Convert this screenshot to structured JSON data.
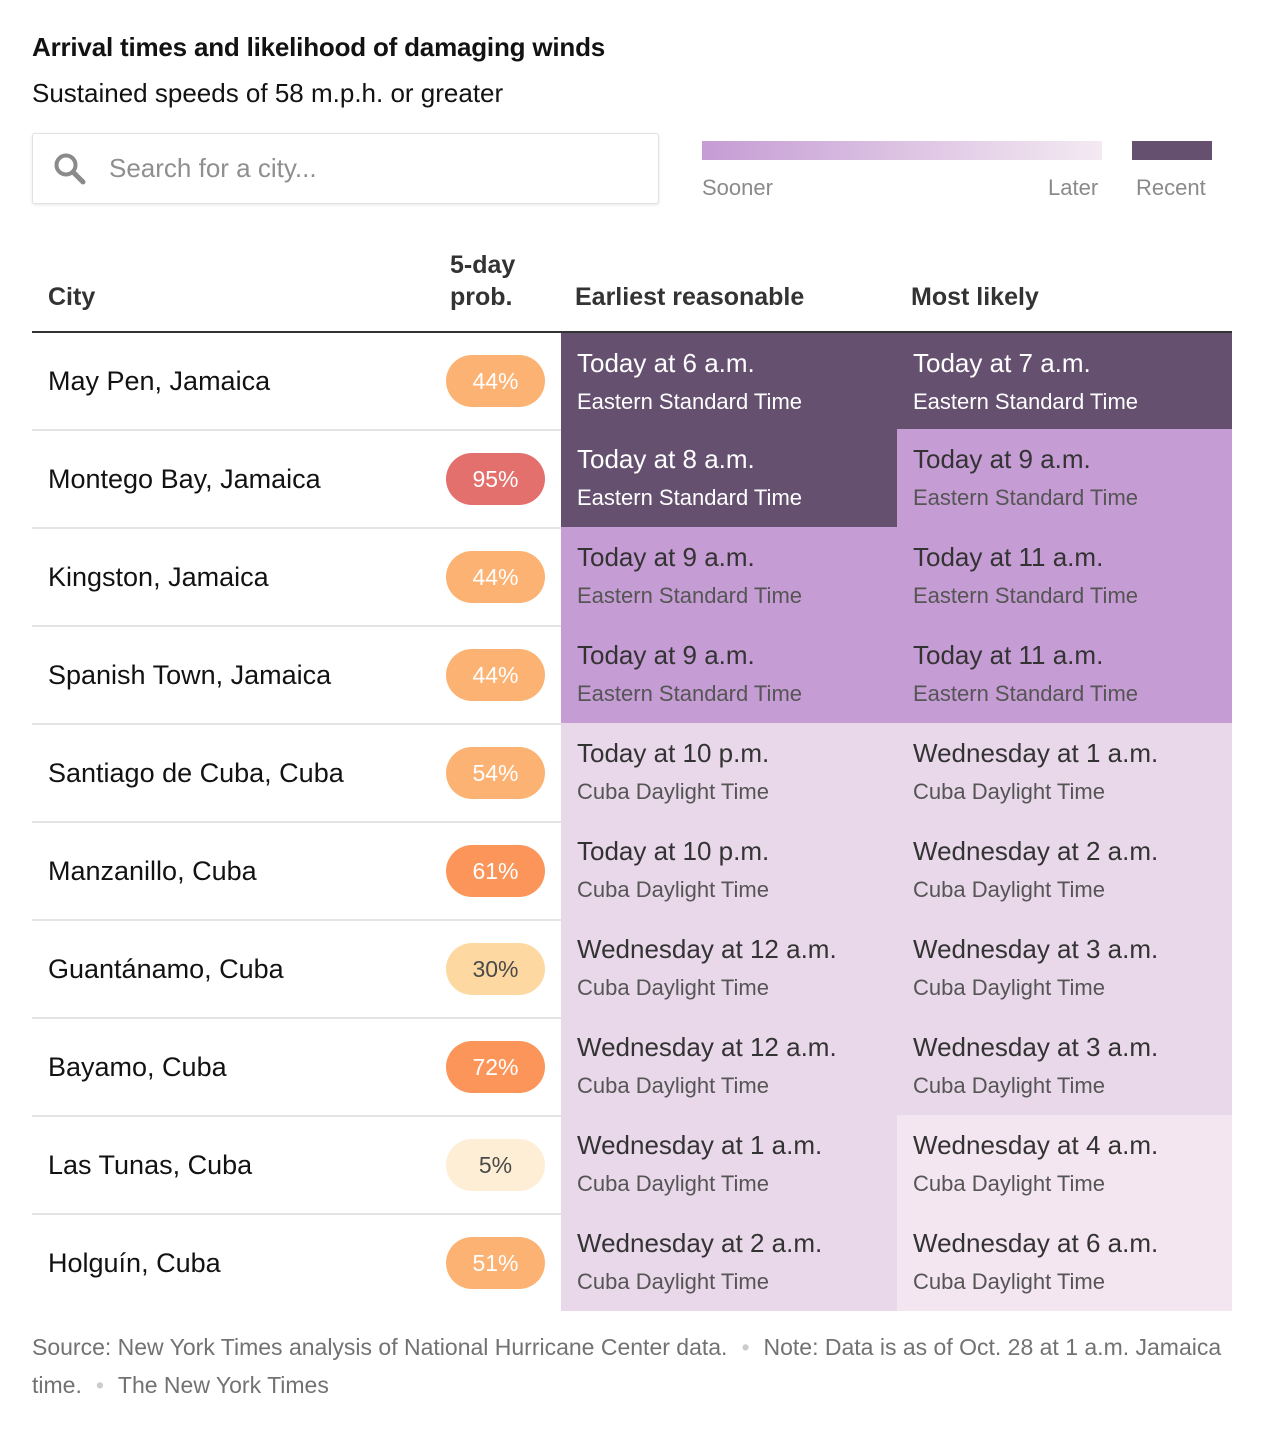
{
  "title": "Arrival times and likelihood of damaging winds",
  "subtitle": "Sustained speeds of 58 m.p.h. or greater",
  "search": {
    "placeholder": "Search for a city..."
  },
  "legend": {
    "sooner": "Sooner",
    "later": "Later",
    "recent": "Recent",
    "colors": {
      "sooner": "#c59cd4",
      "later": "#f4eaf2",
      "recent": "#655070"
    }
  },
  "table": {
    "headers": {
      "city": "City",
      "prob_line1": "5-day",
      "prob_line2": "prob.",
      "earliest": "Earliest reasonable",
      "likely": "Most likely"
    },
    "rows": [
      {
        "city": "May Pen, Jamaica",
        "prob": "44%",
        "prob_color": "#fcb272",
        "early_time": "Today at 6 a.m.",
        "early_zone": "Eastern Standard Time",
        "early_shade": "recent",
        "likely_time": "Today at 7 a.m.",
        "likely_zone": "Eastern Standard Time",
        "likely_shade": "recent"
      },
      {
        "city": "Montego Bay, Jamaica",
        "prob": "95%",
        "prob_color": "#e3706d",
        "early_time": "Today at 8 a.m.",
        "early_zone": "Eastern Standard Time",
        "early_shade": "recent",
        "likely_time": "Today at 9 a.m.",
        "likely_zone": "Eastern Standard Time",
        "likely_shade": "soon"
      },
      {
        "city": "Kingston, Jamaica",
        "prob": "44%",
        "prob_color": "#fcb272",
        "early_time": "Today at 9 a.m.",
        "early_zone": "Eastern Standard Time",
        "early_shade": "soon",
        "likely_time": "Today at 11 a.m.",
        "likely_zone": "Eastern Standard Time",
        "likely_shade": "soon"
      },
      {
        "city": "Spanish Town, Jamaica",
        "prob": "44%",
        "prob_color": "#fcb272",
        "early_time": "Today at 9 a.m.",
        "early_zone": "Eastern Standard Time",
        "early_shade": "soon",
        "likely_time": "Today at 11 a.m.",
        "likely_zone": "Eastern Standard Time",
        "likely_shade": "soon"
      },
      {
        "city": "Santiago de Cuba, Cuba",
        "prob": "54%",
        "prob_color": "#fcb272",
        "early_time": "Today at 10 p.m.",
        "early_zone": "Cuba Daylight Time",
        "early_shade": "mid",
        "likely_time": "Wednesday at 1 a.m.",
        "likely_zone": "Cuba Daylight Time",
        "likely_shade": "mid"
      },
      {
        "city": "Manzanillo, Cuba",
        "prob": "61%",
        "prob_color": "#fc9559",
        "early_time": "Today at 10 p.m.",
        "early_zone": "Cuba Daylight Time",
        "early_shade": "mid",
        "likely_time": "Wednesday at 2 a.m.",
        "likely_zone": "Cuba Daylight Time",
        "likely_shade": "mid"
      },
      {
        "city": "Guantánamo, Cuba",
        "prob": "30%",
        "prob_color": "#fdd8a1",
        "early_time": "Wednesday at 12 a.m.",
        "early_zone": "Cuba Daylight Time",
        "early_shade": "mid",
        "likely_time": "Wednesday at 3 a.m.",
        "likely_zone": "Cuba Daylight Time",
        "likely_shade": "mid"
      },
      {
        "city": "Bayamo, Cuba",
        "prob": "72%",
        "prob_color": "#fc9559",
        "early_time": "Wednesday at 12 a.m.",
        "early_zone": "Cuba Daylight Time",
        "early_shade": "mid",
        "likely_time": "Wednesday at 3 a.m.",
        "likely_zone": "Cuba Daylight Time",
        "likely_shade": "mid"
      },
      {
        "city": "Las Tunas, Cuba",
        "prob": "5%",
        "prob_color": "#fdeed5",
        "early_time": "Wednesday at 1 a.m.",
        "early_zone": "Cuba Daylight Time",
        "early_shade": "mid",
        "likely_time": "Wednesday at 4 a.m.",
        "likely_zone": "Cuba Daylight Time",
        "likely_shade": "late"
      },
      {
        "city": "Holguín, Cuba",
        "prob": "51%",
        "prob_color": "#fcb272",
        "early_time": "Wednesday at 2 a.m.",
        "early_zone": "Cuba Daylight Time",
        "early_shade": "mid",
        "likely_time": "Wednesday at 6 a.m.",
        "likely_zone": "Cuba Daylight Time",
        "likely_shade": "late"
      }
    ]
  },
  "footer": {
    "source": "Source: New York Times analysis of National Hurricane Center data.",
    "note": "Note: Data is as of Oct. 28 at 1 a.m. Jamaica time.",
    "credit": "The New York Times"
  }
}
